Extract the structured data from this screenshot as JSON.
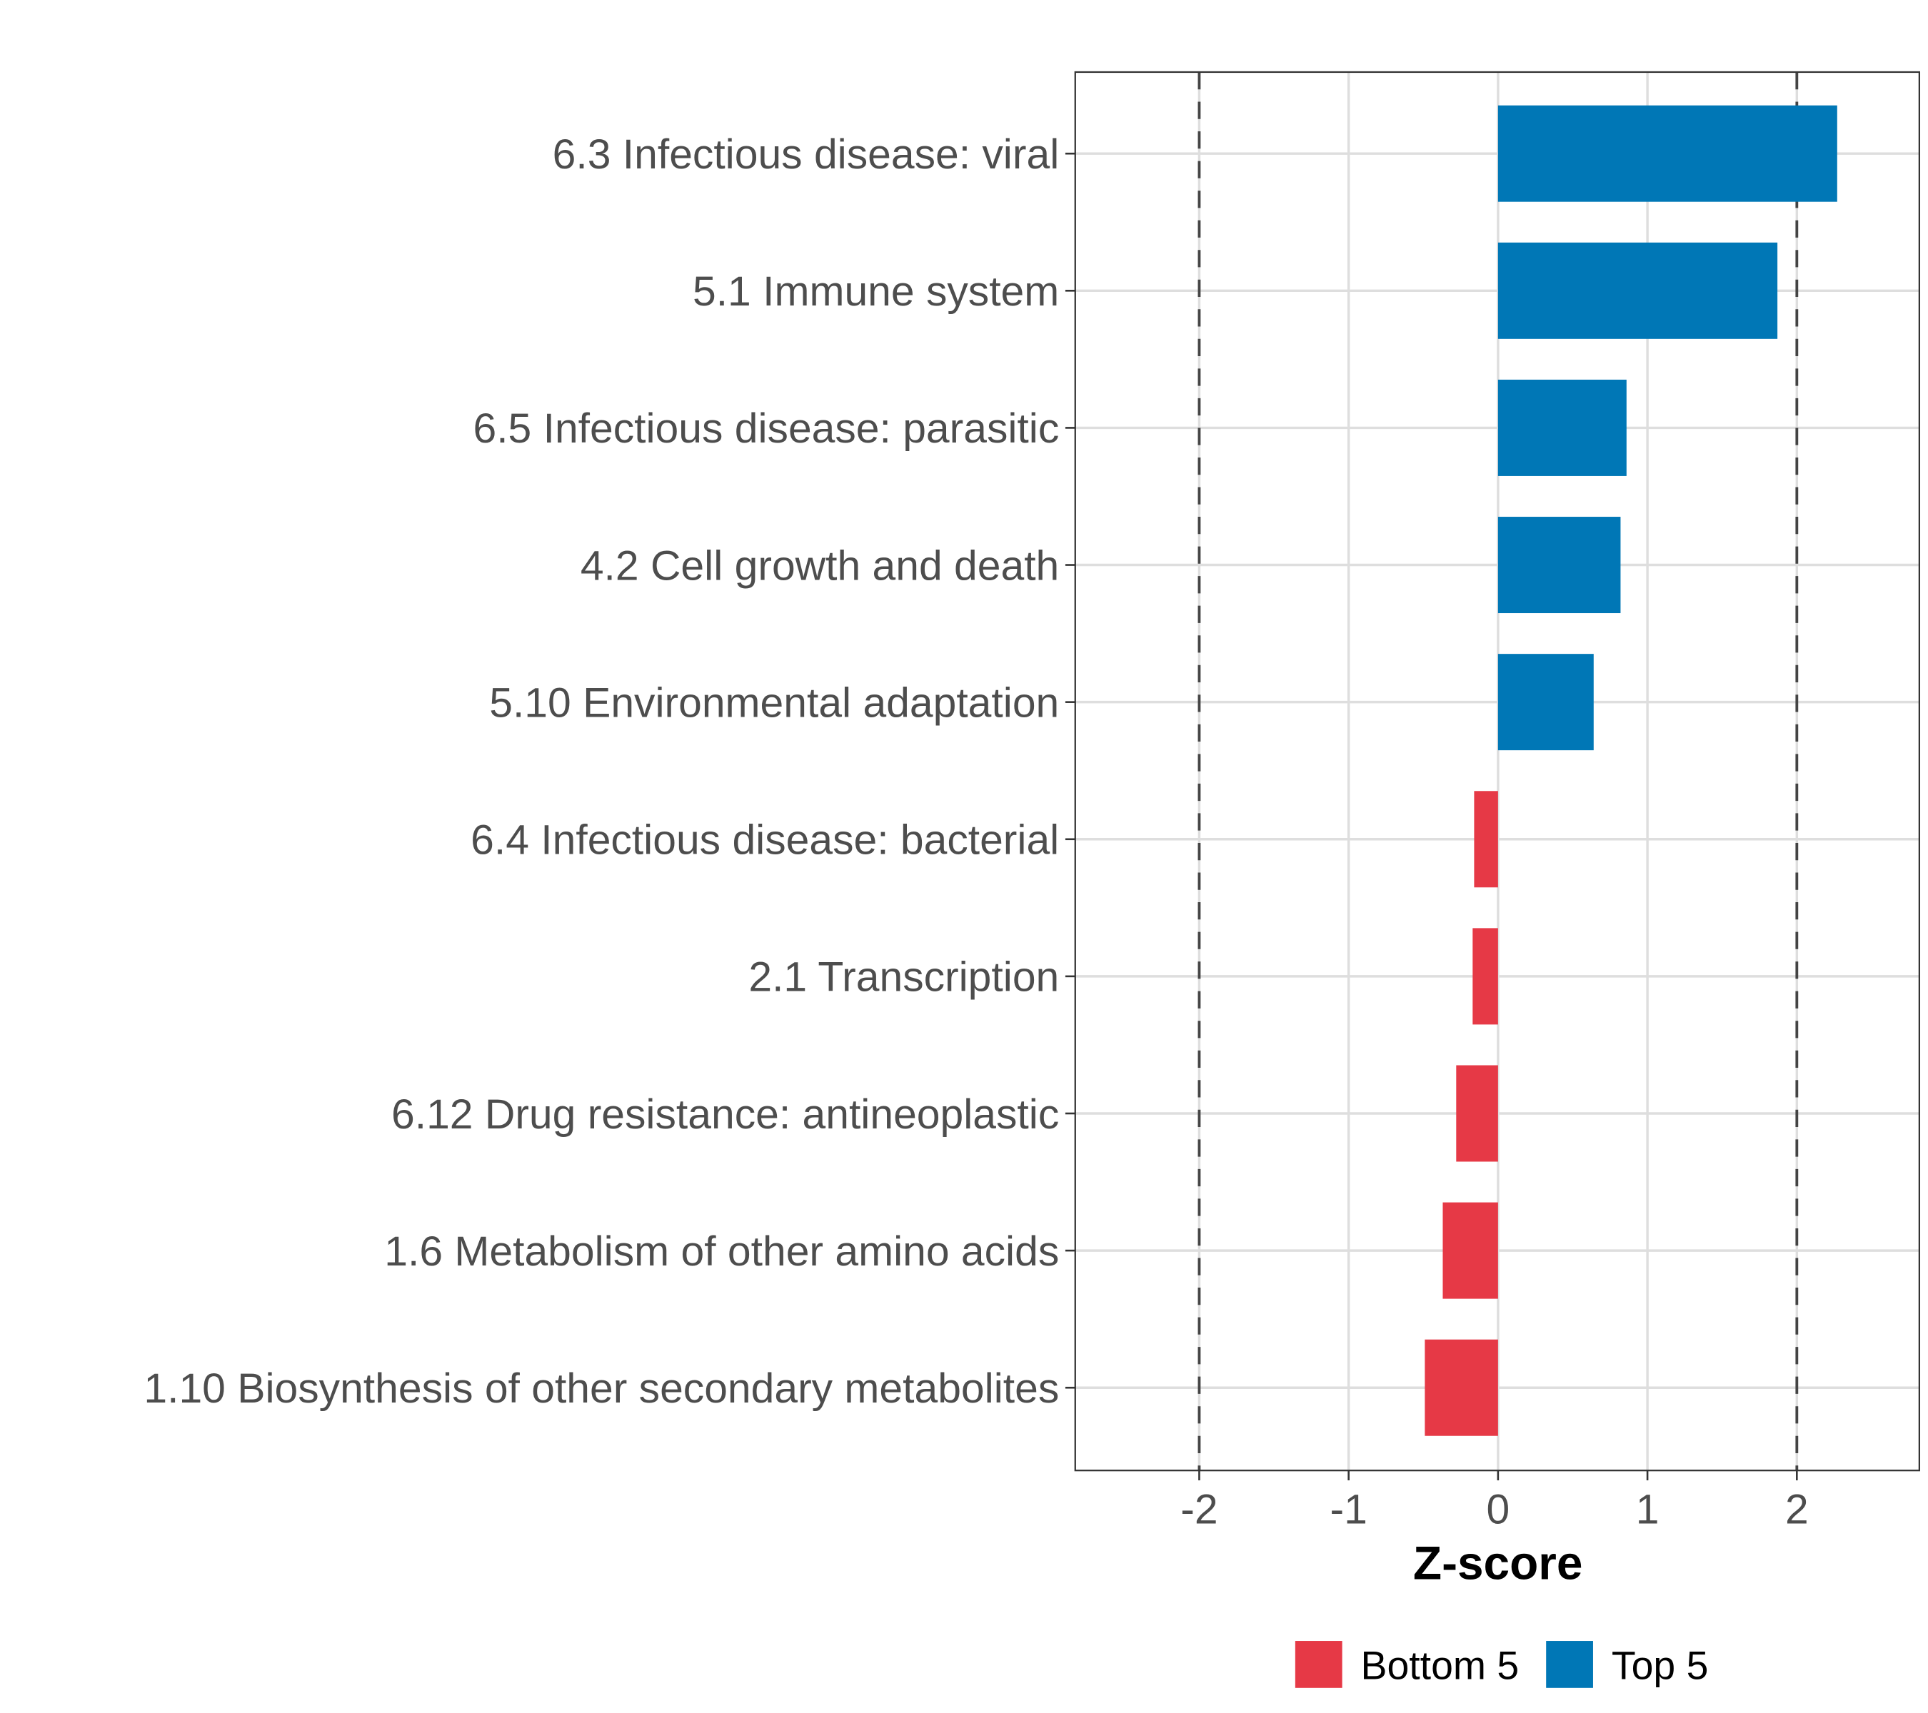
{
  "chart_data": {
    "type": "bar",
    "orientation": "horizontal",
    "categories": [
      "6.3 Infectious disease: viral",
      "5.1 Immune system",
      "6.5 Infectious disease: parasitic",
      "4.2 Cell growth and death",
      "5.10 Environmental adaptation",
      "6.4 Infectious disease: bacterial",
      "2.1 Transcription",
      "6.12 Drug resistance: antineoplastic",
      "1.6 Metabolism of other amino acids",
      "1.10 Biosynthesis of other secondary metabolites"
    ],
    "values": [
      2.27,
      1.87,
      0.86,
      0.82,
      0.64,
      -0.16,
      -0.17,
      -0.28,
      -0.37,
      -0.49
    ],
    "groups": [
      "Top 5",
      "Top 5",
      "Top 5",
      "Top 5",
      "Top 5",
      "Bottom 5",
      "Bottom 5",
      "Bottom 5",
      "Bottom 5",
      "Bottom 5"
    ],
    "xlabel": "Z-score",
    "ylabel": "",
    "xlim": [
      -2.83,
      2.82
    ],
    "xticks": [
      -2,
      -1,
      0,
      1,
      2
    ],
    "xtick_labels": [
      "-2",
      "-1",
      "0",
      "1",
      "2"
    ],
    "reference_lines": [
      -2,
      2
    ],
    "grid": true,
    "legend": {
      "placement": "bottom",
      "entries": [
        {
          "label": "Bottom 5",
          "color": "#E63946"
        },
        {
          "label": "Top 5",
          "color": "#0077B6"
        }
      ]
    }
  }
}
